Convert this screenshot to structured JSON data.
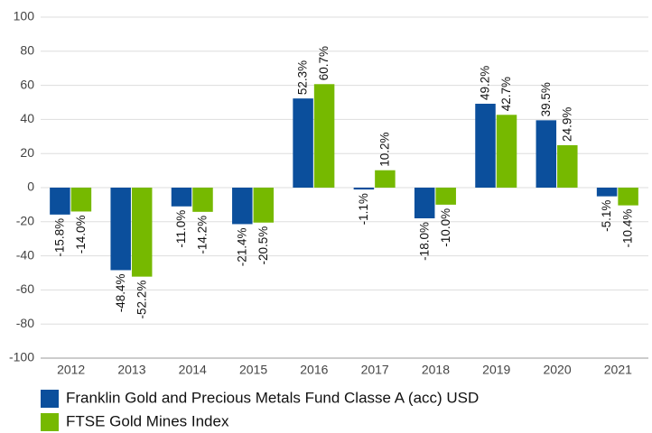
{
  "chart_data": {
    "type": "bar",
    "categories": [
      "2012",
      "2013",
      "2014",
      "2015",
      "2016",
      "2017",
      "2018",
      "2019",
      "2020",
      "2021"
    ],
    "series": [
      {
        "name": "Franklin Gold and Precious Metals Fund Classe A (acc) USD",
        "color": "#0b4f9c",
        "values": [
          -15.8,
          -48.4,
          -11.0,
          -21.4,
          52.3,
          -1.1,
          -18.0,
          49.2,
          39.5,
          -5.1
        ],
        "value_labels": [
          "-15.8%",
          "-48.4%",
          "-11.0%",
          "-21.4%",
          "52.3%",
          "-1.1%",
          "-18.0%",
          "49.2%",
          "39.5%",
          "-5.1%"
        ]
      },
      {
        "name": "FTSE Gold Mines Index",
        "color": "#76b900",
        "values": [
          -14.0,
          -52.2,
          -14.2,
          -20.5,
          60.7,
          10.2,
          -10.0,
          42.7,
          24.9,
          -10.4
        ],
        "value_labels": [
          "-14.0%",
          "-52.2%",
          "-14.2%",
          "-20.5%",
          "60.7%",
          "10.2%",
          "-10.0%",
          "42.7%",
          "24.9%",
          "-10.4%"
        ]
      }
    ],
    "ylim": [
      -100,
      100
    ],
    "yticks": [
      -100,
      -80,
      -60,
      -40,
      -20,
      0,
      20,
      40,
      60,
      80,
      100
    ],
    "grid": true,
    "legend": "bottom"
  }
}
